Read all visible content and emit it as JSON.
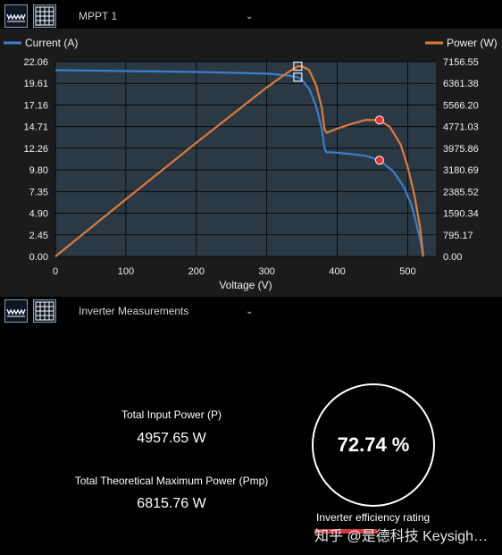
{
  "top_toolbar": {
    "selector_label": "MPPT 1"
  },
  "bottom_toolbar": {
    "selector_label": "Inverter Measurements"
  },
  "chart_data": {
    "type": "line",
    "xlabel": "Voltage (V)",
    "x_ticks": [
      "0",
      "100",
      "200",
      "300",
      "400",
      "500"
    ],
    "xlim": [
      0,
      540
    ],
    "y_left_ticks": [
      "0.00",
      "2.45",
      "4.90",
      "7.35",
      "9.80",
      "12.26",
      "14.71",
      "17.16",
      "19.61",
      "22.06"
    ],
    "y_right_ticks": [
      "0.00",
      "795.17",
      "1590.34",
      "2385.52",
      "3180.69",
      "3975.86",
      "4771.03",
      "5566.20",
      "6361.38",
      "7156.55"
    ],
    "ylim_left": [
      0,
      22.06
    ],
    "ylim_right": [
      0,
      7156.55
    ],
    "legend_left": "top-left",
    "legend_right": "top-right",
    "grid": true,
    "series": [
      {
        "name": "Current (A)",
        "axis": "left",
        "color": "#3a7fd0",
        "x": [
          0,
          100,
          200,
          300,
          330,
          344,
          350,
          360,
          370,
          378,
          382,
          385,
          390,
          400,
          420,
          440,
          460,
          480,
          495,
          505,
          512,
          518,
          522
        ],
        "y": [
          21.1,
          21.0,
          20.9,
          20.7,
          20.5,
          20.3,
          20.0,
          19.0,
          17.0,
          14.5,
          12.2,
          11.8,
          11.8,
          11.75,
          11.6,
          11.4,
          10.9,
          9.6,
          7.8,
          5.9,
          3.8,
          1.8,
          0.0
        ]
      },
      {
        "name": "Power (W)",
        "axis": "right",
        "color": "#e07a3a",
        "x": [
          0,
          100,
          200,
          300,
          330,
          344,
          350,
          360,
          370,
          378,
          382,
          385,
          400,
          420,
          440,
          460,
          475,
          490,
          500,
          510,
          518,
          522
        ],
        "y": [
          0,
          2100,
          4180,
          6210,
          6765,
          6990,
          6990,
          6850,
          6300,
          5480,
          4660,
          4540,
          4700,
          4870,
          5016,
          5014,
          4750,
          4110,
          3300,
          2200,
          1000,
          0
        ]
      }
    ],
    "markers": [
      {
        "series": "Power (W)",
        "shape": "square",
        "x": 344,
        "y": 6990
      },
      {
        "series": "Current (A)",
        "shape": "square",
        "x": 344,
        "y": 20.3
      },
      {
        "series": "Power (W)",
        "shape": "circle",
        "x": 460,
        "y": 5014
      },
      {
        "series": "Current (A)",
        "shape": "circle",
        "x": 460,
        "y": 10.9
      }
    ]
  },
  "metrics": {
    "input_power_label": "Total Input Power (P)",
    "input_power_value": "4957.65 W",
    "max_power_label": "Total Theoretical Maximum Power (Pmp)",
    "max_power_value": "6815.76 W"
  },
  "efficiency": {
    "value": "72.74 %",
    "label": "Inverter efficiency rating"
  },
  "watermark": "知乎 @是德科技 Keysigh…",
  "colors": {
    "current": "#3a7fd0",
    "power": "#e07a3a",
    "plot_bg": "#2b3944",
    "panel_bg": "#1b1b1b",
    "marker_red": "#e53030"
  },
  "icons": {
    "chart_view": "waveform-icon",
    "grid_view": "grid-icon",
    "dropdown": "chevron-down-icon"
  }
}
